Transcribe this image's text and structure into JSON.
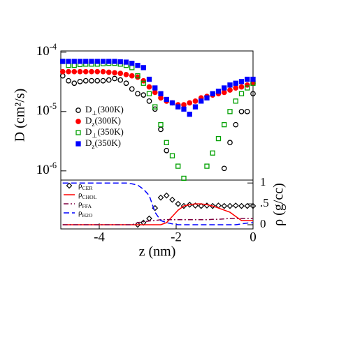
{
  "chart_data": [
    {
      "type": "scatter",
      "ylabel": "D (cm²/s)",
      "log_scale": true,
      "xlim": [
        -5,
        0
      ],
      "ylim": [
        7e-07,
        0.000105
      ],
      "yticks": [
        {
          "value": 0.0001,
          "label": "10-4"
        },
        {
          "value": 1e-05,
          "label": "10-5"
        },
        {
          "value": 1e-06,
          "label": "10-6"
        }
      ],
      "x": [
        -4.95,
        -4.8,
        -4.65,
        -4.5,
        -4.35,
        -4.2,
        -4.05,
        -3.9,
        -3.75,
        -3.6,
        -3.45,
        -3.3,
        -3.15,
        -3.0,
        -2.85,
        -2.7,
        -2.55,
        -2.4,
        -2.25,
        -2.1,
        -1.95,
        -1.8,
        -1.65,
        -1.5,
        -1.35,
        -1.2,
        -1.05,
        -0.9,
        -0.75,
        -0.6,
        -0.45,
        -0.3,
        -0.15,
        0.0
      ],
      "series": [
        {
          "name": "D⊥(300K)",
          "color": "#000000",
          "marker": "circle-open",
          "values": [
            4e-05,
            3.3e-05,
            3e-05,
            3.2e-05,
            3.3e-05,
            3.3e-05,
            3.3e-05,
            3.3e-05,
            3.4e-05,
            3.6e-05,
            3.4e-05,
            3e-05,
            2.4e-05,
            2e-05,
            1.9e-05,
            1.5e-05,
            1.1e-05,
            5e-06,
            2.2e-06,
            null,
            null,
            null,
            null,
            null,
            null,
            null,
            null,
            null,
            1.1e-06,
            3e-06,
            6e-06,
            1e-05,
            1e-05,
            2e-05
          ]
        },
        {
          "name": "Dz(300K)",
          "color": "#ff0000",
          "marker": "circle-filled",
          "values": [
            4.7e-05,
            4.7e-05,
            4.7e-05,
            4.7e-05,
            4.7e-05,
            4.7e-05,
            4.7e-05,
            4.7e-05,
            4.6e-05,
            4.5e-05,
            4.4e-05,
            4.2e-05,
            4e-05,
            3.8e-05,
            3.3e-05,
            2.6e-05,
            2.1e-05,
            1.7e-05,
            1.5e-05,
            1.4e-05,
            1.3e-05,
            1.3e-05,
            1.4e-05,
            1.5e-05,
            1.7e-05,
            1.8e-05,
            1.9e-05,
            2e-05,
            2.1e-05,
            2.3e-05,
            2.5e-05,
            2.6e-05,
            2.8e-05,
            3e-05
          ]
        },
        {
          "name": "D⊥(350K)",
          "color": "#00a000",
          "marker": "square-open",
          "values": [
            7e-05,
            6e-05,
            6e-05,
            6.2e-05,
            6.3e-05,
            6.3e-05,
            6.3e-05,
            6.4e-05,
            6.5e-05,
            6.5e-05,
            6.3e-05,
            6e-05,
            5.5e-05,
            4e-05,
            3e-05,
            2e-05,
            1.2e-05,
            6e-06,
            3e-06,
            1.8e-06,
            1.2e-06,
            7.5e-07,
            null,
            null,
            null,
            1.2e-06,
            2e-06,
            3.5e-06,
            6e-06,
            1e-05,
            1.5e-05,
            2e-05,
            2.5e-05,
            3e-05
          ]
        },
        {
          "name": "Dz(350K)",
          "color": "#0000ff",
          "marker": "square-filled",
          "values": [
            7e-05,
            7e-05,
            7e-05,
            7e-05,
            7e-05,
            7e-05,
            7e-05,
            7e-05,
            7e-05,
            7e-05,
            6.9e-05,
            6.8e-05,
            6.5e-05,
            6e-05,
            5.5e-05,
            3.5e-05,
            2.5e-05,
            2e-05,
            1.6e-05,
            1.4e-05,
            1.2e-05,
            1.1e-05,
            9e-06,
            1.2e-05,
            1.5e-05,
            1.7e-05,
            2e-05,
            2.2e-05,
            2.5e-05,
            2.8e-05,
            3e-05,
            3.2e-05,
            3.5e-05,
            3.5e-05
          ]
        }
      ]
    },
    {
      "type": "line",
      "xlabel": "z (nm)",
      "ylabel": "ρ (g/cc)",
      "xlim": [
        -5,
        0
      ],
      "ylim": [
        -0.1,
        1.07
      ],
      "xticks": [
        -4,
        -2,
        0
      ],
      "yticks": [
        0,
        {
          "value": 0.5,
          "label": ".5"
        },
        1
      ],
      "x": [
        -4.95,
        -4.8,
        -4.65,
        -4.5,
        -4.35,
        -4.2,
        -4.05,
        -3.9,
        -3.75,
        -3.6,
        -3.45,
        -3.3,
        -3.15,
        -3.0,
        -2.85,
        -2.7,
        -2.55,
        -2.4,
        -2.25,
        -2.1,
        -1.95,
        -1.8,
        -1.65,
        -1.5,
        -1.35,
        -1.2,
        -1.05,
        -0.9,
        -0.75,
        -0.6,
        -0.45,
        -0.3,
        -0.15,
        0.0
      ],
      "series": [
        {
          "name": "ρCER",
          "color": "#000000",
          "style": "diamond",
          "values": [
            0,
            0,
            0,
            0,
            0,
            0,
            0,
            0,
            0,
            0,
            0,
            0,
            0,
            0,
            0.05,
            0.15,
            0.4,
            0.65,
            0.7,
            0.6,
            0.5,
            0.45,
            0.48,
            0.46,
            0.45,
            0.46,
            0.45,
            0.46,
            0.45,
            0.45,
            0.46,
            0.45,
            0.45,
            0.45
          ]
        },
        {
          "name": "ρCHOL",
          "color": "#ff0000",
          "style": "solid",
          "values": [
            0,
            0,
            0,
            0,
            0,
            0,
            0,
            0,
            0,
            0,
            0,
            0,
            0,
            0,
            0,
            0,
            0,
            0,
            0.05,
            0.2,
            0.35,
            0.45,
            0.48,
            0.5,
            0.5,
            0.48,
            0.45,
            0.4,
            0.35,
            0.3,
            0.2,
            0.1,
            0.1,
            0.1
          ]
        },
        {
          "name": "ρFFA",
          "color": "#800040",
          "style": "dashdot",
          "values": [
            0,
            0,
            0,
            0,
            0,
            0,
            0,
            0,
            0,
            0,
            0,
            0,
            0,
            0.05,
            0.07,
            0.09,
            0.1,
            0.12,
            0.12,
            0.12,
            0.12,
            0.12,
            0.12,
            0.12,
            0.12,
            0.12,
            0.13,
            0.13,
            0.14,
            0.15,
            0.15,
            0.15,
            0.15,
            0.15
          ]
        },
        {
          "name": "ρH2O",
          "color": "#0000ff",
          "style": "dash",
          "values": [
            1,
            1,
            1,
            1,
            1,
            1,
            1,
            1,
            1,
            1,
            1,
            1,
            0.98,
            0.95,
            0.85,
            0.7,
            0.3,
            0.1,
            0.05,
            0.02,
            0,
            0,
            0,
            0,
            0,
            0,
            0,
            0,
            0,
            0,
            0,
            0.02,
            0.04,
            0.05
          ]
        }
      ]
    }
  ]
}
